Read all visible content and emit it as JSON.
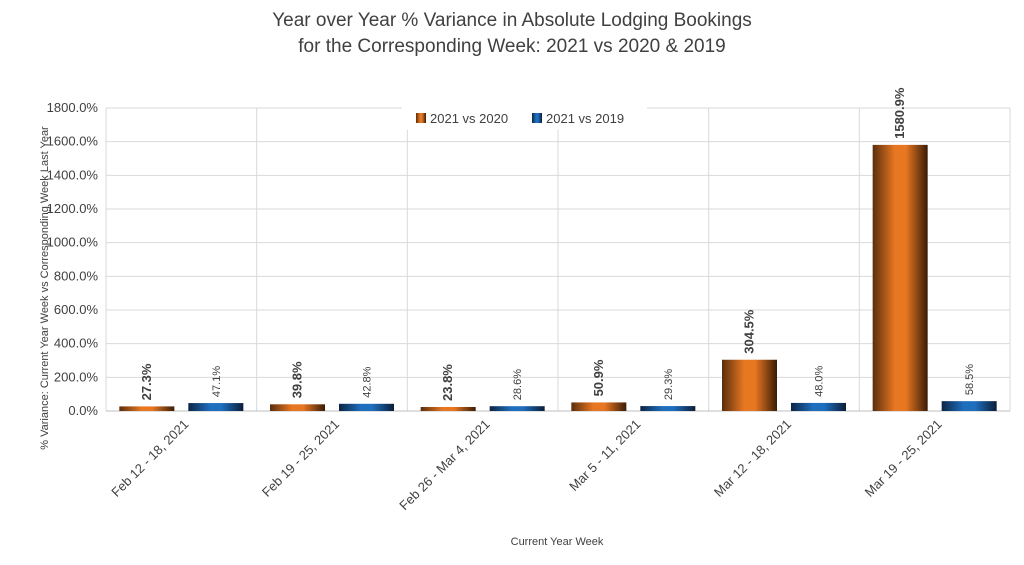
{
  "chart_data": {
    "type": "bar",
    "title": "Year over Year % Variance in Absolute Lodging Bookings",
    "subtitle": "for the Corresponding Week:  2021 vs 2020 & 2019",
    "xlabel": "Current Year Week",
    "ylabel": "% Variance:  Current Year Week vs Corresponding Week Last Year",
    "ylim": [
      0,
      1800
    ],
    "ytick_labels": [
      "0.0%",
      "200.0%",
      "400.0%",
      "600.0%",
      "800.0%",
      "1000.0%",
      "1200.0%",
      "1400.0%",
      "1600.0%",
      "1800.0%"
    ],
    "grid": true,
    "legend_position": "top",
    "categories": [
      "Feb 12 - 18, 2021",
      "Feb 19 - 25, 2021",
      "Feb 26 - Mar 4, 2021",
      "Mar 5 - 11, 2021",
      "Mar 12 - 18, 2021",
      "Mar 19 - 25, 2021"
    ],
    "series": [
      {
        "name": "2021 vs 2020",
        "color": "#E87722",
        "values": [
          27.3,
          39.8,
          23.8,
          50.9,
          304.5,
          1580.9
        ],
        "labels": [
          "27.3%",
          "39.8%",
          "23.8%",
          "50.9%",
          "304.5%",
          "1580.9%"
        ]
      },
      {
        "name": "2021 vs 2019",
        "color": "#1F6FBF",
        "values": [
          47.1,
          42.8,
          28.6,
          29.3,
          48.0,
          58.5
        ],
        "labels": [
          "47.1%",
          "42.8%",
          "28.6%",
          "29.3%",
          "48.0%",
          "58.5%"
        ]
      }
    ]
  }
}
